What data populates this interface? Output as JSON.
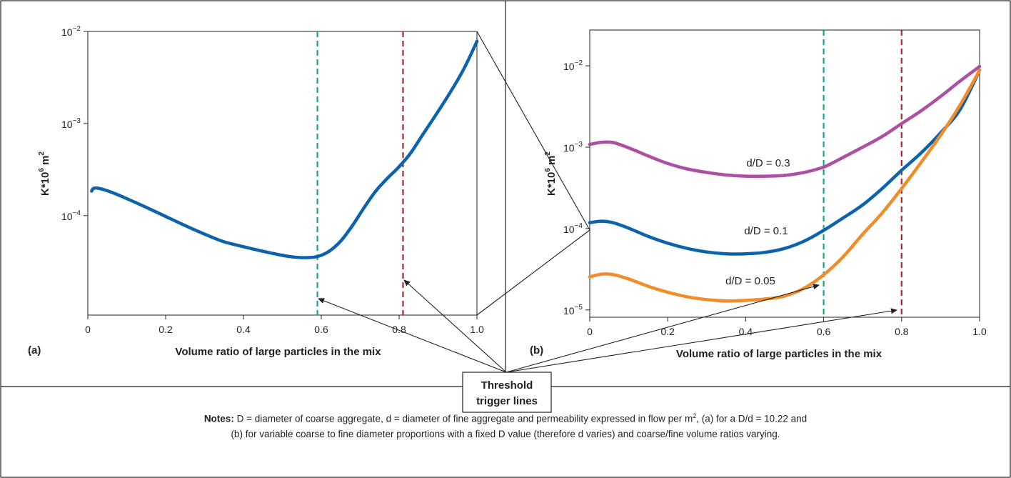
{
  "chart_data": [
    {
      "id": "a",
      "type": "line",
      "panel_label": "(a)",
      "xlabel": "Volume ratio of large particles in the mix",
      "ylabel_main": "K*10",
      "ylabel_sup": "6",
      "ylabel_unit": "m",
      "ylabel_unit_sup": "2",
      "x_scale": "linear",
      "y_scale": "log",
      "xlim": [
        0,
        1.0
      ],
      "ylim_log10": [
        -5.08,
        -2.0
      ],
      "x_ticks": [
        0,
        0.2,
        0.4,
        0.6,
        0.8,
        1.0
      ],
      "x_tick_labels": [
        "0",
        "0.2",
        "0.4",
        "0.6",
        "0.8",
        "1.0"
      ],
      "y_ticks": [
        -4,
        -3,
        -2
      ],
      "y_tick_base": "10",
      "y_tick_exponents": [
        "−4",
        "−3",
        "−2"
      ],
      "threshold_lines": [
        {
          "x": 0.59,
          "color": "#17a589"
        },
        {
          "x": 0.81,
          "color": "#b22030"
        }
      ],
      "series": [
        {
          "color": "#0c63ad",
          "points": [
            [
              0.01,
              0.000185
            ],
            [
              0.015,
              0.000198
            ],
            [
              0.03,
              0.000197
            ],
            [
              0.06,
              0.00018
            ],
            [
              0.1,
              0.000153
            ],
            [
              0.15,
              0.000123
            ],
            [
              0.2,
              9.8e-05
            ],
            [
              0.25,
              7.8e-05
            ],
            [
              0.3,
              6.3e-05
            ],
            [
              0.35,
              5.2e-05
            ],
            [
              0.4,
              4.6e-05
            ],
            [
              0.45,
              4.1e-05
            ],
            [
              0.5,
              3.7e-05
            ],
            [
              0.53,
              3.55e-05
            ],
            [
              0.56,
              3.5e-05
            ],
            [
              0.59,
              3.6e-05
            ],
            [
              0.62,
              4.1e-05
            ],
            [
              0.65,
              5.3e-05
            ],
            [
              0.68,
              7.8e-05
            ],
            [
              0.71,
              0.000122
            ],
            [
              0.74,
              0.000185
            ],
            [
              0.77,
              0.000255
            ],
            [
              0.8,
              0.00034
            ],
            [
              0.83,
              0.00048
            ],
            [
              0.86,
              0.00075
            ],
            [
              0.9,
              0.00135
            ],
            [
              0.94,
              0.0025
            ],
            [
              0.97,
              0.0042
            ],
            [
              1.0,
              0.0078
            ]
          ]
        }
      ]
    },
    {
      "id": "b",
      "type": "line",
      "panel_label": "(b)",
      "xlabel": "Volume ratio of large particles in the mix",
      "ylabel_main": "K*10",
      "ylabel_sup": "6",
      "ylabel_unit": "m",
      "ylabel_unit_sup": "2",
      "x_scale": "linear",
      "y_scale": "log",
      "xlim": [
        0,
        1.0
      ],
      "ylim_log10": [
        -5.09,
        -1.56
      ],
      "x_ticks": [
        0,
        0.2,
        0.4,
        0.6,
        0.8,
        1.0
      ],
      "x_tick_labels": [
        "0",
        "0.2",
        "0.4",
        "0.6",
        "0.8",
        "1.0"
      ],
      "y_ticks": [
        -5,
        -4,
        -3,
        -2
      ],
      "y_tick_base": "10",
      "y_tick_exponents": [
        "−5",
        "−4",
        "−3",
        "−2"
      ],
      "threshold_lines": [
        {
          "x": 0.6,
          "color": "#17a589"
        },
        {
          "x": 0.8,
          "color": "#b22030"
        }
      ],
      "series": [
        {
          "name": "d/D = 0.3",
          "color": "#ad4fa3",
          "points": [
            [
              0.0,
              0.00108
            ],
            [
              0.03,
              0.00115
            ],
            [
              0.06,
              0.00114
            ],
            [
              0.1,
              0.00098
            ],
            [
              0.15,
              0.00078
            ],
            [
              0.2,
              0.00063
            ],
            [
              0.25,
              0.00054
            ],
            [
              0.3,
              0.00049
            ],
            [
              0.35,
              0.000455
            ],
            [
              0.4,
              0.00044
            ],
            [
              0.45,
              0.00044
            ],
            [
              0.5,
              0.00045
            ],
            [
              0.55,
              0.00049
            ],
            [
              0.6,
              0.00057
            ],
            [
              0.65,
              0.00075
            ],
            [
              0.7,
              0.001
            ],
            [
              0.75,
              0.00135
            ],
            [
              0.8,
              0.00195
            ],
            [
              0.85,
              0.0028
            ],
            [
              0.9,
              0.0042
            ],
            [
              0.95,
              0.0065
            ],
            [
              1.0,
              0.0098
            ]
          ]
        },
        {
          "name": "d/D = 0.1",
          "color": "#0c63ad",
          "points": [
            [
              0.0,
              0.000118
            ],
            [
              0.03,
              0.000123
            ],
            [
              0.06,
              0.000118
            ],
            [
              0.1,
              0.000101
            ],
            [
              0.15,
              8e-05
            ],
            [
              0.2,
              6.6e-05
            ],
            [
              0.25,
              5.7e-05
            ],
            [
              0.3,
              5.15e-05
            ],
            [
              0.35,
              4.9e-05
            ],
            [
              0.4,
              4.9e-05
            ],
            [
              0.45,
              5.1e-05
            ],
            [
              0.5,
              5.7e-05
            ],
            [
              0.55,
              7e-05
            ],
            [
              0.6,
              9.5e-05
            ],
            [
              0.65,
              0.000135
            ],
            [
              0.7,
              0.000195
            ],
            [
              0.75,
              0.00031
            ],
            [
              0.8,
              0.00052
            ],
            [
              0.85,
              0.00085
            ],
            [
              0.9,
              0.0015
            ],
            [
              0.95,
              0.0029
            ],
            [
              1.0,
              0.0088
            ]
          ]
        },
        {
          "name": "d/D = 0.05",
          "color": "#f18c2b",
          "points": [
            [
              0.0,
              2.55e-05
            ],
            [
              0.03,
              2.75e-05
            ],
            [
              0.06,
              2.72e-05
            ],
            [
              0.1,
              2.4e-05
            ],
            [
              0.15,
              1.95e-05
            ],
            [
              0.2,
              1.65e-05
            ],
            [
              0.25,
              1.45e-05
            ],
            [
              0.3,
              1.34e-05
            ],
            [
              0.35,
              1.29e-05
            ],
            [
              0.4,
              1.31e-05
            ],
            [
              0.45,
              1.36e-05
            ],
            [
              0.5,
              1.48e-05
            ],
            [
              0.55,
              1.85e-05
            ],
            [
              0.6,
              2.7e-05
            ],
            [
              0.65,
              4.5e-05
            ],
            [
              0.7,
              8.5e-05
            ],
            [
              0.75,
              0.000155
            ],
            [
              0.8,
              0.00031
            ],
            [
              0.85,
              0.00065
            ],
            [
              0.9,
              0.0014
            ],
            [
              0.95,
              0.0033
            ],
            [
              1.0,
              0.0088
            ]
          ]
        }
      ]
    }
  ],
  "series_labels": [
    "d/D = 0.3",
    "d/D = 0.1",
    "d/D = 0.05"
  ],
  "callout": {
    "line1": "Threshold",
    "line2": "trigger lines"
  },
  "notes": {
    "lead": "Notes:",
    "line1_text": " D = diameter of coarse aggregate, d = diameter of fine aggregate and permeability expressed in flow per m",
    "line1_sup": "2",
    "line1_tail": ", (a) for a D/d = 10.22 and",
    "line2": "(b) for variable coarse to fine diameter proportions with a fixed D value (therefore d varies) and coarse/fine volume ratios varying."
  }
}
